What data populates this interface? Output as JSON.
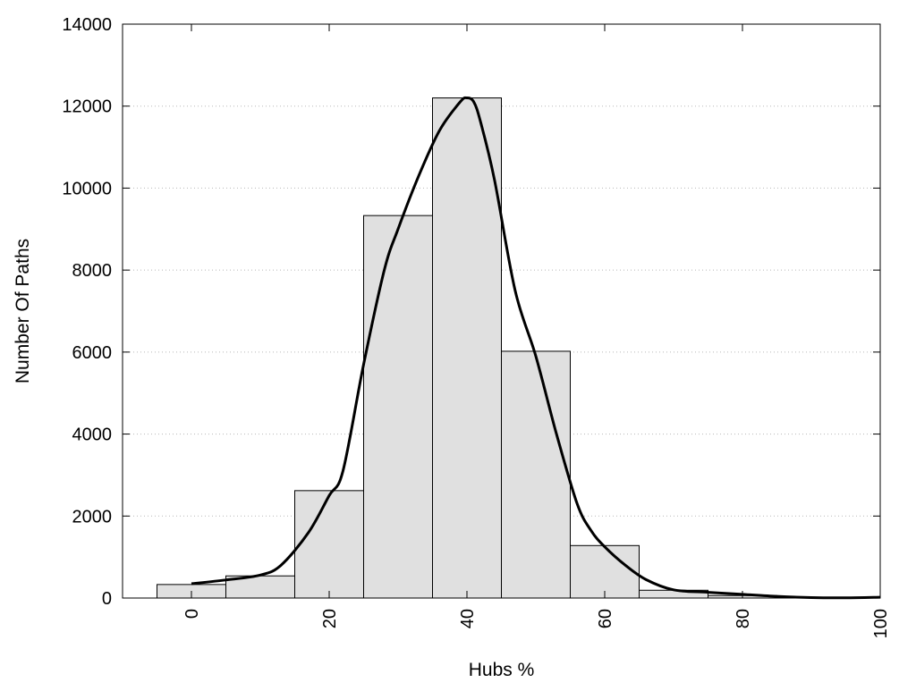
{
  "chart_data": {
    "type": "bar",
    "title": "",
    "xlabel": "Hubs %",
    "ylabel": "Number Of Paths",
    "xlim": [
      -10,
      100
    ],
    "ylim": [
      0,
      14000
    ],
    "x_ticks": [
      0,
      20,
      40,
      60,
      80,
      100
    ],
    "y_ticks": [
      0,
      2000,
      4000,
      6000,
      8000,
      10000,
      12000,
      14000
    ],
    "grid": "horizontal dotted",
    "legend": "none",
    "bar_width": 10,
    "bar_color": "#e0e0e0",
    "bars": [
      {
        "x": 0,
        "value": 330
      },
      {
        "x": 10,
        "value": 540
      },
      {
        "x": 20,
        "value": 2620
      },
      {
        "x": 30,
        "value": 9330
      },
      {
        "x": 40,
        "value": 12200
      },
      {
        "x": 50,
        "value": 6020
      },
      {
        "x": 60,
        "value": 1280
      },
      {
        "x": 70,
        "value": 190
      },
      {
        "x": 80,
        "value": 60
      },
      {
        "x": 90,
        "value": 10
      },
      {
        "x": 100,
        "value": 10
      }
    ],
    "curve": {
      "type": "line",
      "color": "#000000",
      "points": [
        [
          0,
          350
        ],
        [
          5,
          440
        ],
        [
          10,
          560
        ],
        [
          13,
          800
        ],
        [
          17,
          1600
        ],
        [
          20,
          2500
        ],
        [
          22,
          3100
        ],
        [
          25,
          5700
        ],
        [
          28,
          8000
        ],
        [
          30,
          9000
        ],
        [
          33,
          10300
        ],
        [
          36,
          11400
        ],
        [
          39,
          12100
        ],
        [
          40,
          12200
        ],
        [
          41,
          12100
        ],
        [
          42,
          11600
        ],
        [
          44,
          10200
        ],
        [
          47,
          7500
        ],
        [
          50,
          5900
        ],
        [
          53,
          4000
        ],
        [
          56,
          2300
        ],
        [
          58,
          1650
        ],
        [
          60,
          1250
        ],
        [
          63,
          800
        ],
        [
          66,
          450
        ],
        [
          70,
          200
        ],
        [
          75,
          140
        ],
        [
          80,
          90
        ],
        [
          85,
          40
        ],
        [
          90,
          10
        ],
        [
          95,
          5
        ],
        [
          100,
          20
        ]
      ]
    }
  }
}
